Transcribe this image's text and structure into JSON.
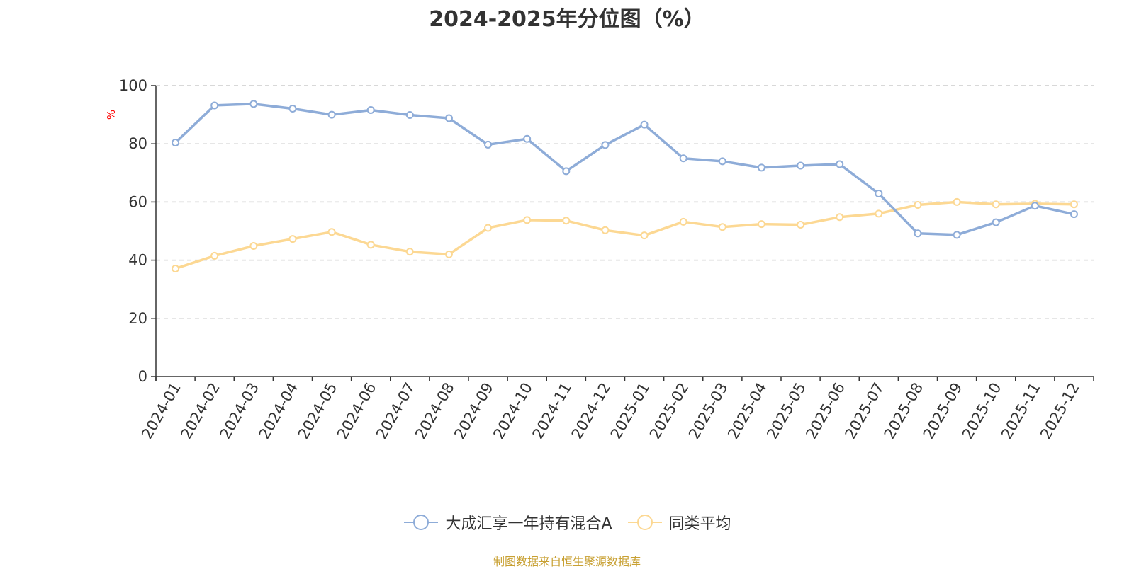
{
  "chart_data": {
    "type": "line",
    "title": "2024-2025年分位图（%）",
    "ylabel": "%",
    "xlabel": "",
    "ylim": [
      0,
      100
    ],
    "y_ticks": [
      "0",
      "20",
      "40",
      "60",
      "80",
      "100"
    ],
    "grid": "horizontal dashed",
    "legend_position": "bottom",
    "categories": [
      "2024-01",
      "2024-02",
      "2024-03",
      "2024-04",
      "2024-05",
      "2024-06",
      "2024-07",
      "2024-08",
      "2024-09",
      "2024-10",
      "2024-11",
      "2024-12",
      "2025-01",
      "2025-02",
      "2025-03",
      "2025-04",
      "2025-05",
      "2025-06",
      "2025-07",
      "2025-08",
      "2025-09",
      "2025-10",
      "2025-11",
      "2025-12"
    ],
    "series": [
      {
        "name": "大成汇享一年持有混合A",
        "color": "#8eacd8",
        "values": [
          80.4,
          93.2,
          93.7,
          92.1,
          90.0,
          91.6,
          89.9,
          88.8,
          79.7,
          81.7,
          70.6,
          79.6,
          86.6,
          75.0,
          74.0,
          71.8,
          72.5,
          73.0,
          62.9,
          49.2,
          48.7,
          53.0,
          58.7,
          55.8
        ]
      },
      {
        "name": "同类平均",
        "color": "#fcd893",
        "values": [
          37.1,
          41.5,
          44.9,
          47.3,
          49.7,
          45.3,
          42.9,
          42.0,
          51.1,
          53.8,
          53.6,
          50.3,
          48.5,
          53.2,
          51.4,
          52.4,
          52.2,
          54.8,
          56.0,
          59.0,
          60.0,
          59.2,
          59.4,
          59.2
        ]
      }
    ]
  },
  "footer": {
    "source": "制图数据来自恒生聚源数据库"
  },
  "colors": {
    "axis": "#333333",
    "grid": "#cccccc",
    "ylabel": "#ff0000",
    "source": "#c8a032"
  }
}
